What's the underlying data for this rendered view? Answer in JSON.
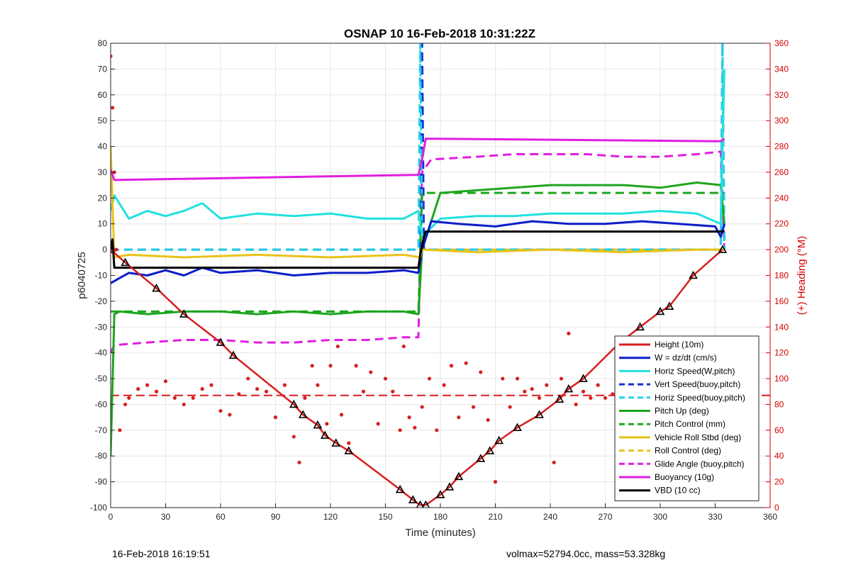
{
  "footer": {
    "left": "16-Feb-2018 16:19:51",
    "right": "volmax=52794.0cc, mass=53.328kg"
  },
  "chart_data": {
    "type": "line",
    "title": "OSNAP 10 16-Feb-2018 10:31:22Z",
    "xlabel": "Time (minutes)",
    "ylabel": "p6040725",
    "y2label": "(+) Heading (°M)",
    "xlim": [
      0,
      360
    ],
    "ylim": [
      -100,
      80
    ],
    "y2lim": [
      0,
      360
    ],
    "xticks": [
      0,
      30,
      60,
      90,
      120,
      150,
      180,
      210,
      240,
      270,
      300,
      330,
      360
    ],
    "yticks": [
      -100,
      -90,
      -80,
      -70,
      -60,
      -50,
      -40,
      -30,
      -20,
      -10,
      0,
      10,
      20,
      30,
      40,
      50,
      60,
      70,
      80
    ],
    "y2ticks": [
      0,
      20,
      40,
      60,
      80,
      100,
      120,
      140,
      160,
      180,
      200,
      220,
      240,
      260,
      280,
      300,
      320,
      340,
      360
    ],
    "grid": true,
    "legend_position": "bottom-right",
    "series": [
      {
        "name": "Height (10m)",
        "color": "#d81e1e",
        "style": "solid",
        "marker": "triangle-black",
        "x": [
          0,
          8,
          25,
          40,
          60,
          67,
          100,
          105,
          113,
          117,
          123,
          130,
          158,
          165,
          169,
          172,
          180,
          185,
          190,
          202,
          207,
          212,
          222,
          234,
          245,
          250,
          258,
          278,
          289,
          300,
          305,
          318,
          334
        ],
        "y": [
          0,
          -5,
          -15,
          -25,
          -36,
          -41,
          -60,
          -64,
          -68,
          -72,
          -75,
          -78,
          -93,
          -97,
          -99,
          -99,
          -95,
          -92,
          -88,
          -81,
          -78,
          -74,
          -69,
          -64,
          -58,
          -54,
          -50,
          -36,
          -30,
          -24,
          -22,
          -10,
          0
        ]
      },
      {
        "name": "W = dz/dt (cm/s)",
        "color": "#0b1ec8",
        "style": "solid",
        "x": [
          0,
          5,
          10,
          20,
          30,
          40,
          50,
          60,
          80,
          100,
          120,
          140,
          160,
          168,
          170,
          175,
          190,
          210,
          230,
          250,
          270,
          290,
          310,
          330,
          333,
          335
        ],
        "y": [
          -13,
          -11,
          -9,
          -10,
          -8,
          -10,
          -7,
          -9,
          -8,
          -10,
          -9,
          -9,
          -8,
          -9,
          0,
          11,
          10,
          9,
          11,
          10,
          10,
          11,
          10,
          9,
          5,
          10
        ]
      },
      {
        "name": "Horiz Speed(W,pitch)",
        "color": "#22e0e0",
        "style": "solid",
        "x": [
          0,
          2,
          10,
          20,
          30,
          40,
          50,
          60,
          80,
          100,
          120,
          140,
          160,
          168,
          170,
          180,
          200,
          220,
          240,
          260,
          280,
          300,
          320,
          333,
          335
        ],
        "y": [
          15,
          21,
          12,
          15,
          13,
          15,
          18,
          12,
          14,
          13,
          14,
          12,
          12,
          15,
          5,
          12,
          13,
          13,
          14,
          14,
          14,
          15,
          14,
          10,
          70
        ]
      },
      {
        "name": "Vert Speed(buoy,pitch)",
        "color": "#1a2fd6",
        "style": "dashed",
        "x": [
          0,
          169,
          170,
          171,
          172,
          333,
          334,
          335
        ],
        "y": [
          0,
          0,
          80,
          0,
          0,
          0,
          80,
          0
        ]
      },
      {
        "name": "Horiz Speed(buoy,pitch)",
        "color": "#22d0e8",
        "style": "dashed",
        "x": [
          0,
          168,
          169,
          170,
          171,
          333,
          334,
          335
        ],
        "y": [
          0,
          0,
          80,
          0,
          0,
          0,
          80,
          0
        ]
      },
      {
        "name": "Pitch Up (deg)",
        "color": "#1ea51e",
        "style": "solid",
        "x": [
          0,
          2,
          5,
          20,
          40,
          60,
          80,
          100,
          120,
          140,
          160,
          168,
          170,
          180,
          200,
          220,
          240,
          260,
          280,
          300,
          320,
          333,
          335
        ],
        "y": [
          -80,
          -25,
          -24,
          -25,
          -24,
          -24,
          -25,
          -24,
          -25,
          -24,
          -24,
          -25,
          0,
          22,
          23,
          24,
          25,
          25,
          25,
          24,
          26,
          25,
          10
        ]
      },
      {
        "name": "Pitch Control (mm)",
        "color": "#1ea51e",
        "style": "dashed",
        "x": [
          0,
          168,
          170,
          335
        ],
        "y": [
          -24,
          -24,
          22,
          22
        ]
      },
      {
        "name": "Vehicle Roll Stbd (deg)",
        "color": "#e8c31a",
        "style": "solid",
        "x": [
          0,
          2,
          10,
          40,
          80,
          120,
          160,
          169,
          170,
          200,
          240,
          280,
          320,
          333,
          335
        ],
        "y": [
          40,
          -3,
          -2,
          -3,
          -2,
          -3,
          -2,
          -3,
          0,
          -1,
          0,
          -1,
          0,
          0,
          0
        ]
      },
      {
        "name": "Roll Control (deg)",
        "color": "#e8c31a",
        "style": "dashed",
        "x": [
          0,
          169,
          170,
          335
        ],
        "y": [
          0,
          0,
          0,
          0
        ]
      },
      {
        "name": "Glide Angle (buoy,pitch)",
        "color": "#e01ee0",
        "style": "dashed",
        "x": [
          0,
          2,
          20,
          40,
          60,
          80,
          100,
          120,
          140,
          160,
          168,
          170,
          175,
          200,
          220,
          240,
          260,
          280,
          300,
          320,
          333,
          335
        ],
        "y": [
          -40,
          -37,
          -36,
          -35,
          -35,
          -36,
          -36,
          -35,
          -35,
          -34,
          -34,
          30,
          35,
          36,
          37,
          37,
          37,
          36,
          36,
          37,
          38,
          0
        ]
      },
      {
        "name": "Buoyancy (10g)",
        "color": "#e01ee0",
        "style": "solid",
        "x": [
          0,
          2,
          168,
          170,
          172,
          333,
          335
        ],
        "y": [
          31,
          27,
          29,
          35,
          43,
          42,
          43
        ]
      },
      {
        "name": "VBD (10 cc)",
        "color": "#000000",
        "style": "solid",
        "x": [
          0,
          1,
          2,
          168,
          169,
          171,
          172,
          333,
          334,
          335
        ],
        "y": [
          0,
          4,
          -7,
          -7,
          -2,
          5,
          7,
          7,
          7,
          7
        ]
      }
    ],
    "heading": {
      "name": "(+) Heading (°M)",
      "color": "#d81e1e",
      "marker": "dots",
      "axis": "right",
      "reference": 87,
      "x": [
        0,
        1,
        2,
        3,
        5,
        8,
        10,
        15,
        20,
        25,
        30,
        35,
        40,
        45,
        50,
        55,
        60,
        65,
        70,
        75,
        80,
        85,
        90,
        95,
        100,
        103,
        106,
        110,
        113,
        118,
        120,
        124,
        126,
        130,
        134,
        138,
        142,
        146,
        150,
        154,
        158,
        160,
        163,
        166,
        170,
        174,
        178,
        182,
        186,
        190,
        194,
        198,
        202,
        206,
        210,
        214,
        218,
        222,
        226,
        230,
        234,
        238,
        242,
        246,
        250,
        254,
        258,
        262,
        266,
        270,
        274,
        278,
        282,
        286,
        290,
        294,
        298,
        302,
        306,
        310,
        314,
        318,
        322,
        326,
        330,
        334
      ],
      "y": [
        350,
        310,
        260,
        200,
        60,
        80,
        85,
        92,
        95,
        90,
        98,
        85,
        80,
        85,
        92,
        95,
        75,
        72,
        88,
        100,
        92,
        90,
        70,
        95,
        55,
        35,
        85,
        110,
        95,
        65,
        110,
        125,
        72,
        50,
        110,
        90,
        105,
        65,
        100,
        90,
        60,
        125,
        70,
        62,
        78,
        100,
        60,
        95,
        110,
        70,
        112,
        78,
        105,
        68,
        20,
        100,
        78,
        100,
        90,
        92,
        85,
        95,
        35,
        100,
        135,
        80,
        90,
        85,
        95,
        85,
        88,
        90,
        85,
        90,
        80,
        95,
        85,
        90,
        92,
        78,
        90,
        88,
        85,
        90,
        88,
        90
      ]
    }
  }
}
